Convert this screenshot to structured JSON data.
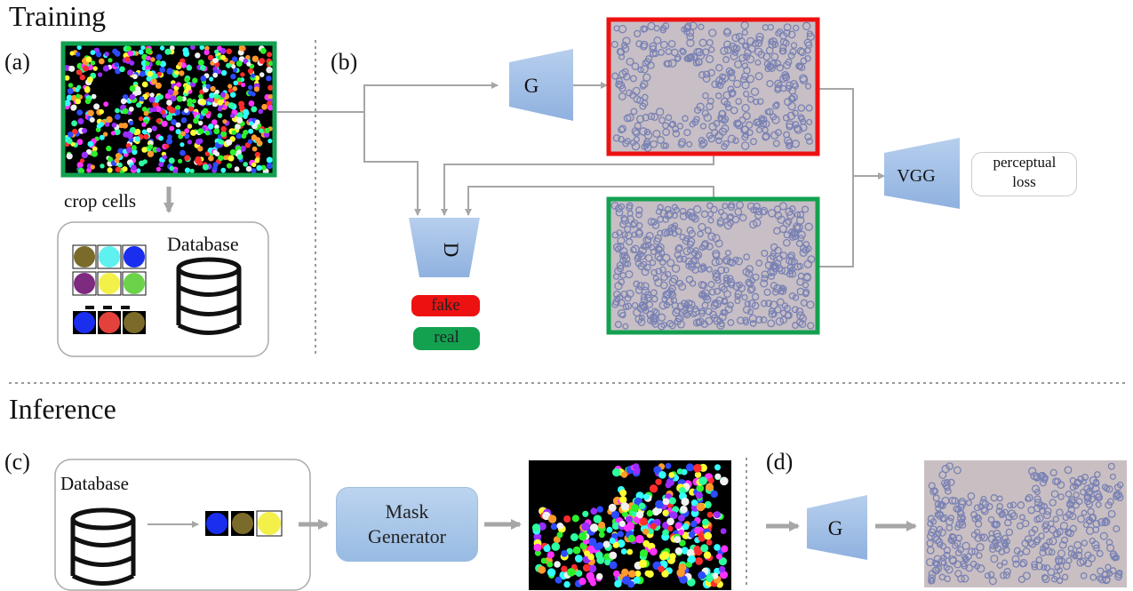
{
  "sections": {
    "training": "Training",
    "inference": "Inference"
  },
  "panels": {
    "a": "(a)",
    "b": "(b)",
    "c": "(c)",
    "d": "(d)"
  },
  "labels": {
    "crop_cells": "crop cells",
    "database_a": "Database",
    "database_c": "Database",
    "generator_b": "G",
    "discriminator": "D",
    "vgg": "VGG",
    "perceptual_loss": "perceptual loss",
    "fake": "fake",
    "real": "real",
    "mask_generator": "Mask Generator",
    "generator_d": "G"
  },
  "colors": {
    "fake_border": "#ee1111",
    "real_border": "#13a150",
    "mask_border": "#13a150",
    "network_fill": "#9dbde6",
    "arrow": "#a6a6a6",
    "micrograph_bg": "#c7bfc5",
    "cell": "#7a82b4"
  }
}
